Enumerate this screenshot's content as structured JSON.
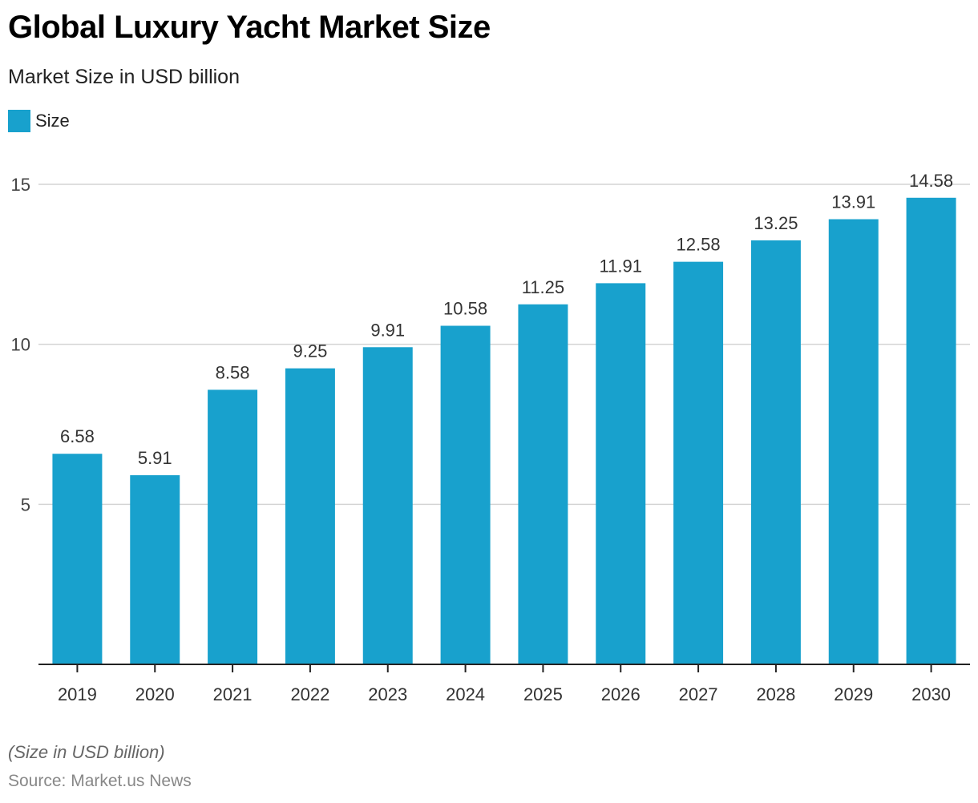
{
  "chart_data": {
    "type": "bar",
    "title": "Global Luxury Yacht Market Size",
    "subtitle": "Market Size in USD billion",
    "xlabel": "",
    "ylabel": "",
    "categories": [
      "2019",
      "2020",
      "2021",
      "2022",
      "2023",
      "2024",
      "2025",
      "2026",
      "2027",
      "2028",
      "2029",
      "2030"
    ],
    "series": [
      {
        "name": "Size",
        "color": "#18a1cd",
        "values": [
          6.58,
          5.91,
          8.58,
          9.25,
          9.91,
          10.58,
          11.25,
          11.91,
          12.58,
          13.25,
          13.91,
          14.58
        ]
      }
    ],
    "data_labels": [
      "6.58",
      "5.91",
      "8.58",
      "9.25",
      "9.91",
      "10.58",
      "11.25",
      "11.91",
      "12.58",
      "13.25",
      "13.91",
      "14.58"
    ],
    "ylim": [
      0,
      15
    ],
    "yticks": [
      5,
      10,
      15
    ],
    "ytick_labels": [
      "5",
      "10",
      "15"
    ],
    "grid": true,
    "legend": {
      "position": "top-left",
      "entries": [
        "Size"
      ]
    },
    "note": "(Size in USD billion)",
    "source": "Source: Market.us News"
  }
}
